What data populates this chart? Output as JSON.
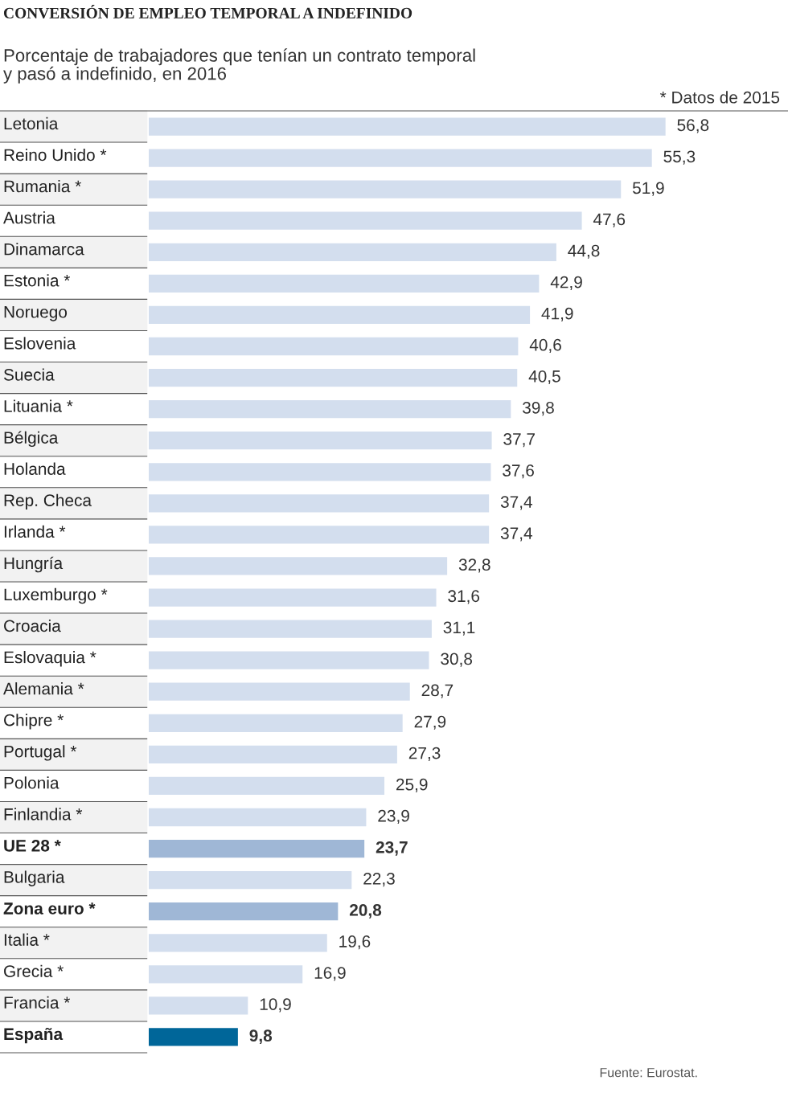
{
  "chart_data": {
    "type": "bar",
    "orientation": "horizontal",
    "title": "CONVERSIÓN DE EMPLEO TEMPORAL A INDEFINIDO",
    "subtitle": "Porcentaje de trabajadores que tenían un contrato temporal\ny pasó a indefinido, en 2016",
    "annotations": [
      "* Datos de 2015",
      "Fuente: Eurostat."
    ],
    "categories": [
      "Letonia",
      "Reino Unido *",
      "Rumania *",
      "Austria",
      "Dinamarca",
      "Estonia *",
      "Noruego",
      "Eslovenia",
      "Suecia",
      "Lituania *",
      "Bélgica",
      "Holanda",
      "Rep. Checa",
      "Irlanda *",
      "Hungría",
      "Luxemburgo *",
      "Croacia",
      "Eslovaquia *",
      "Alemania *",
      "Chipre *",
      "Portugal *",
      "Polonia",
      "Finlandia *",
      "UE 28 *",
      "Bulgaria",
      "Zona euro *",
      "Italia *",
      "Grecia *",
      "Francia *",
      "España"
    ],
    "values": [
      56.8,
      55.3,
      51.9,
      47.6,
      44.8,
      42.9,
      41.9,
      40.6,
      40.5,
      39.8,
      37.7,
      37.6,
      37.4,
      37.4,
      32.8,
      31.6,
      31.1,
      30.8,
      28.7,
      27.9,
      27.3,
      25.9,
      23.9,
      23.7,
      22.3,
      20.8,
      19.6,
      16.9,
      10.9,
      9.8
    ],
    "colors": [
      "#d3deee",
      "#d3deee",
      "#d3deee",
      "#d3deee",
      "#d3deee",
      "#d3deee",
      "#d3deee",
      "#d3deee",
      "#d3deee",
      "#d3deee",
      "#d3deee",
      "#d3deee",
      "#d3deee",
      "#d3deee",
      "#d3deee",
      "#d3deee",
      "#d3deee",
      "#d3deee",
      "#d3deee",
      "#d3deee",
      "#d3deee",
      "#d3deee",
      "#d3deee",
      "#9fb7d6",
      "#d3deee",
      "#9fb7d6",
      "#d3deee",
      "#d3deee",
      "#d3deee",
      "#006699"
    ],
    "value_labels": [
      "56,8",
      "55,3",
      "51,9",
      "47,6",
      "44,8",
      "42,9",
      "41,9",
      "40,6",
      "40,5",
      "39,8",
      "37,7",
      "37,6",
      "37,4",
      "37,4",
      "32,8",
      "31,6",
      "31,1",
      "30,8",
      "28,7",
      "27,9",
      "27,3",
      "25,9",
      "23,9",
      "23,7",
      "22,3",
      "20,8",
      "19,6",
      "16,9",
      "10,9",
      "9,8"
    ],
    "legend": false
  }
}
